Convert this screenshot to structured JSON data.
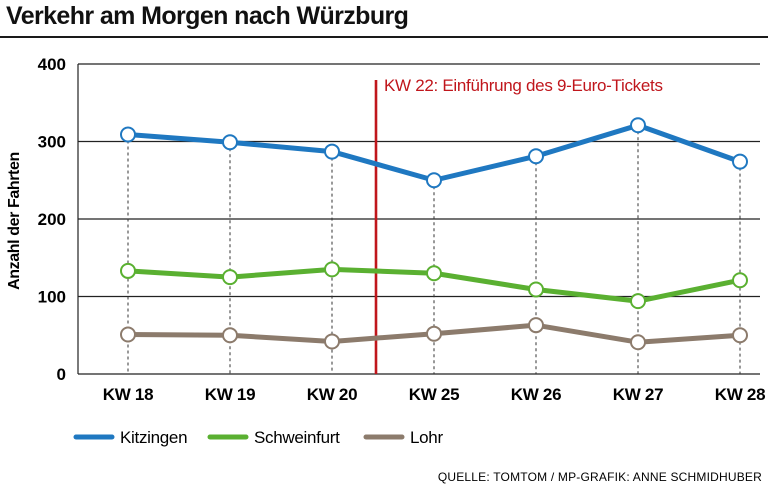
{
  "chart_data": {
    "type": "line",
    "title": "Verkehr am Morgen nach Würzburg",
    "ylabel": "Anzahl der Fahrten",
    "xlabel": "",
    "categories": [
      "KW 18",
      "KW 19",
      "KW 20",
      "KW 25",
      "KW 26",
      "KW 27",
      "KW 28"
    ],
    "ylim": [
      0,
      400
    ],
    "yticks": [
      0,
      100,
      200,
      300,
      400
    ],
    "grid": "horizontal",
    "legend_position": "bottom",
    "series": [
      {
        "name": "Kitzingen",
        "color": "#1f78c1",
        "values": [
          309,
          299,
          287,
          250,
          281,
          321,
          274
        ]
      },
      {
        "name": "Schweinfurt",
        "color": "#5ab031",
        "values": [
          133,
          125,
          135,
          130,
          109,
          94,
          121
        ]
      },
      {
        "name": "Lohr",
        "color": "#8c7b6c",
        "values": [
          51,
          50,
          42,
          52,
          63,
          41,
          50
        ]
      }
    ],
    "annotation": {
      "text": "KW 22: Einführung des 9-Euro-Tickets",
      "color": "#c0161c",
      "between": [
        "KW 20",
        "KW 25"
      ]
    },
    "source": "QUELLE: TOMTOM / MP-GRAFIK: ANNE SCHMIDHUBER"
  }
}
